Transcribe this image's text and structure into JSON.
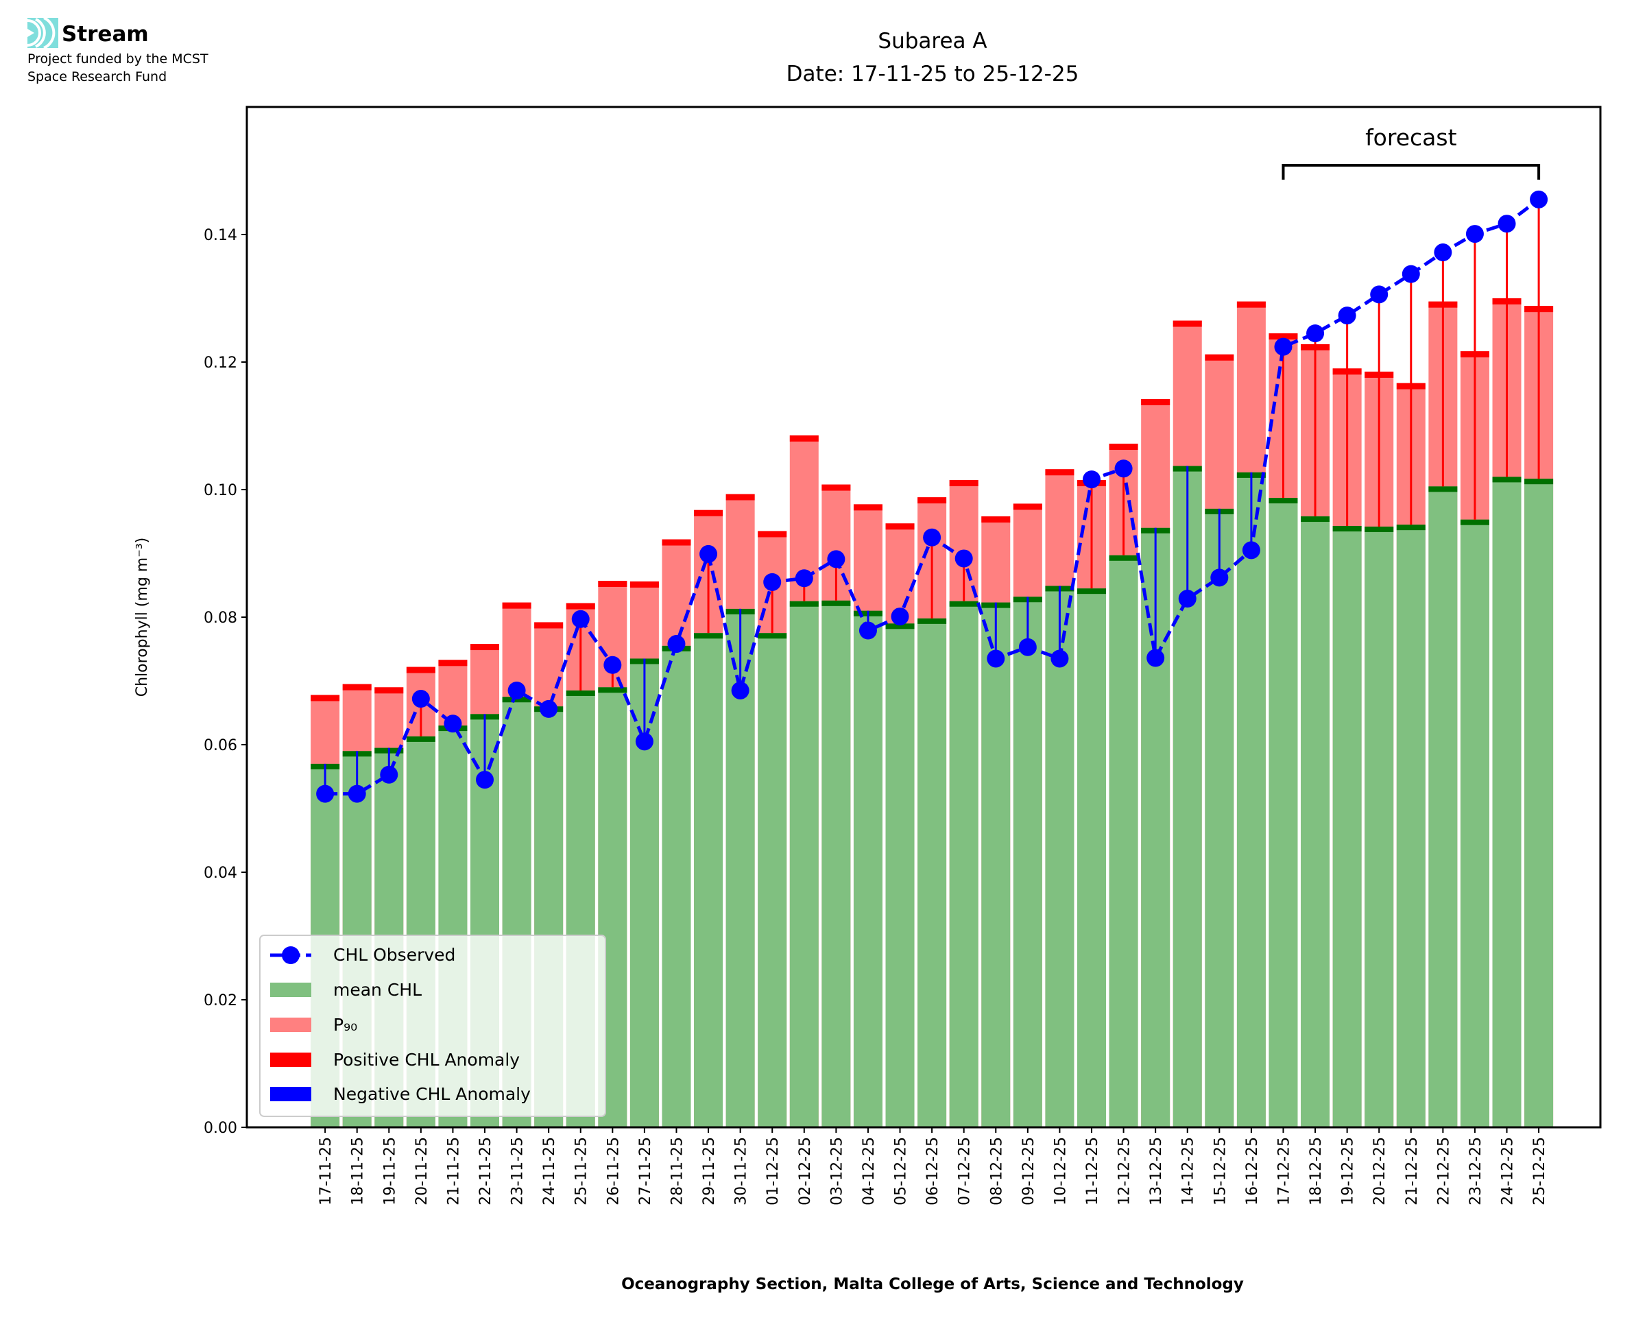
{
  "logo": {
    "name": "Stream",
    "line1": "Project funded by the MCST",
    "line2": "Space Research Fund",
    "color": "#7fdedc"
  },
  "chart_data": {
    "type": "bar",
    "title": "Subarea A",
    "subtitle": "Date: 17-11-25 to 25-12-25",
    "xlabel": "Oceanography Section, Malta College of Arts, Science and Technology",
    "ylabel": "Chlorophyll (mg m⁻³)",
    "ylim": [
      0,
      0.16
    ],
    "yticks": [
      "0.00",
      "0.02",
      "0.04",
      "0.06",
      "0.08",
      "0.10",
      "0.12",
      "0.14"
    ],
    "annotation": {
      "text": "forecast",
      "from": "17-12-25",
      "to": "25-12-25"
    },
    "legend_position": "lower-left",
    "legend": [
      "CHL Observed",
      "mean CHL",
      "P₉₀",
      "Positive CHL Anomaly",
      "Negative CHL Anomaly"
    ],
    "colors": {
      "observed": "#0000ff",
      "mean": "#80c080",
      "mean_edge": "#007000",
      "p90": "#ff8080",
      "p90_edge": "#ff0000",
      "positive": "#ff0000",
      "negative": "#0000ff"
    },
    "categories": [
      "17-11-25",
      "18-11-25",
      "19-11-25",
      "20-11-25",
      "21-11-25",
      "22-11-25",
      "23-11-25",
      "24-11-25",
      "25-11-25",
      "26-11-25",
      "27-11-25",
      "28-11-25",
      "29-11-25",
      "30-11-25",
      "01-12-25",
      "02-12-25",
      "03-12-25",
      "04-12-25",
      "05-12-25",
      "06-12-25",
      "07-12-25",
      "08-12-25",
      "09-12-25",
      "10-12-25",
      "11-12-25",
      "12-12-25",
      "13-12-25",
      "14-12-25",
      "15-12-25",
      "16-12-25",
      "17-12-25",
      "18-12-25",
      "19-12-25",
      "20-12-25",
      "21-12-25",
      "22-12-25",
      "23-12-25",
      "24-12-25",
      "25-12-25"
    ],
    "series": [
      {
        "name": "mean CHL",
        "values": [
          0.057,
          0.059,
          0.0595,
          0.0613,
          0.063,
          0.0648,
          0.0675,
          0.066,
          0.0685,
          0.069,
          0.0735,
          0.0755,
          0.0775,
          0.0813,
          0.0775,
          0.0825,
          0.0826,
          0.081,
          0.079,
          0.0798,
          0.0825,
          0.0823,
          0.0832,
          0.0849,
          0.0845,
          0.0897,
          0.094,
          0.1037,
          0.097,
          0.1027,
          0.0987,
          0.0958,
          0.0943,
          0.0942,
          0.0945,
          0.1005,
          0.0953,
          0.102,
          0.1017
        ]
      },
      {
        "name": "P90",
        "values": [
          0.0678,
          0.0695,
          0.069,
          0.0722,
          0.0733,
          0.0758,
          0.0823,
          0.0792,
          0.0822,
          0.0857,
          0.0856,
          0.0922,
          0.0968,
          0.0993,
          0.0935,
          0.1085,
          0.1008,
          0.0977,
          0.0947,
          0.0988,
          0.1015,
          0.0958,
          0.0978,
          0.1032,
          0.1015,
          0.1072,
          0.1142,
          0.1265,
          0.1212,
          0.1295,
          0.1245,
          0.1228,
          0.119,
          0.1185,
          0.1167,
          0.1295,
          0.1217,
          0.13,
          0.1288
        ]
      },
      {
        "name": "CHL Observed",
        "values": [
          0.0523,
          0.0523,
          0.0553,
          0.0672,
          0.0633,
          0.0545,
          0.0685,
          0.0656,
          0.0797,
          0.0725,
          0.0605,
          0.0758,
          0.0899,
          0.0685,
          0.0855,
          0.0861,
          0.0891,
          0.0779,
          0.0801,
          0.0925,
          0.0892,
          0.0735,
          0.0753,
          0.0735,
          0.1016,
          0.1033,
          0.0736,
          0.0829,
          0.0862,
          0.0905,
          0.1224,
          0.1245,
          0.1273,
          0.1306,
          0.1338,
          0.1372,
          0.1401,
          0.1417,
          0.1455
        ]
      }
    ]
  }
}
